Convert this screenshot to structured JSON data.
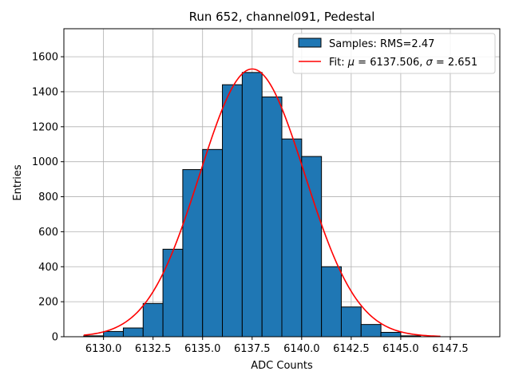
{
  "chart_data": {
    "type": "bar",
    "title": "Run 652, channel091, Pedestal",
    "xlabel": "ADC Counts",
    "ylabel": "Entries",
    "xlim": [
      6128,
      6150
    ],
    "ylim": [
      0,
      1760
    ],
    "xticks": [
      6130.0,
      6132.5,
      6135.0,
      6137.5,
      6140.0,
      6142.5,
      6145.0,
      6147.5
    ],
    "xtick_labels": [
      "6130.0",
      "6132.5",
      "6135.0",
      "6137.5",
      "6140.0",
      "6142.5",
      "6145.0",
      "6147.5"
    ],
    "yticks": [
      0,
      200,
      400,
      600,
      800,
      1000,
      1200,
      1400,
      1600
    ],
    "ytick_labels": [
      "0",
      "200",
      "400",
      "600",
      "800",
      "1000",
      "1200",
      "1400",
      "1600"
    ],
    "grid": true,
    "legend_position": "top-right",
    "bin_edges": [
      6129,
      6130,
      6131,
      6132,
      6133,
      6134,
      6135,
      6136,
      6137,
      6138,
      6139,
      6140,
      6141,
      6142,
      6143,
      6144,
      6145,
      6146,
      6147,
      6148,
      6149
    ],
    "counts": [
      5,
      30,
      50,
      190,
      500,
      955,
      1070,
      1440,
      1510,
      1370,
      1130,
      1030,
      400,
      170,
      70,
      25,
      5,
      0,
      0,
      0
    ],
    "series": [
      {
        "name": "Samples: RMS=2.47",
        "kind": "histogram",
        "color": "#1f77b4",
        "edge_color": "#000000"
      },
      {
        "name_prefix": "Fit: ",
        "mu_symbol": "μ",
        "mu_text": " = 6137.506, ",
        "sigma_symbol": "σ",
        "sigma_text": " = 2.651",
        "kind": "gaussian",
        "color": "#ff0000",
        "mu": 6137.506,
        "sigma": 2.651,
        "amplitude": 1530,
        "x_range": [
          6129,
          6147
        ]
      }
    ]
  }
}
